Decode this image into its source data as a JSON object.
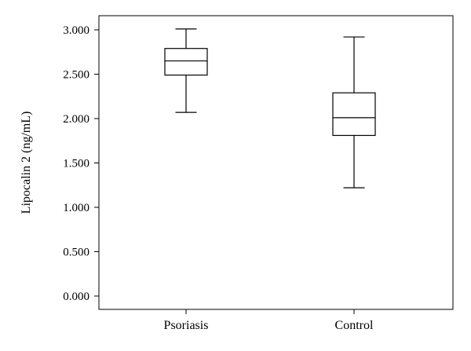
{
  "chart_data": {
    "type": "boxplot",
    "ylabel": "Lipocalin 2 (ng/mL)",
    "xlabel": "",
    "ylim": [
      0,
      3.1
    ],
    "yticks": [
      "0.000",
      "0.500",
      "1.000",
      "1.500",
      "2.000",
      "2.500",
      "3.000"
    ],
    "ytick_values": [
      0,
      0.5,
      1,
      1.5,
      2,
      2.5,
      3
    ],
    "categories": [
      "Psoriasis",
      "Control"
    ],
    "boxes": [
      {
        "category": "Psoriasis",
        "min": 2.07,
        "q1": 2.49,
        "median": 2.65,
        "q3": 2.79,
        "max": 3.01
      },
      {
        "category": "Control",
        "min": 1.22,
        "q1": 1.81,
        "median": 2.01,
        "q3": 2.29,
        "max": 2.92
      }
    ],
    "grid": false,
    "legend": "none",
    "colors": {
      "stroke": "#000000",
      "fill": "#ffffff"
    }
  }
}
